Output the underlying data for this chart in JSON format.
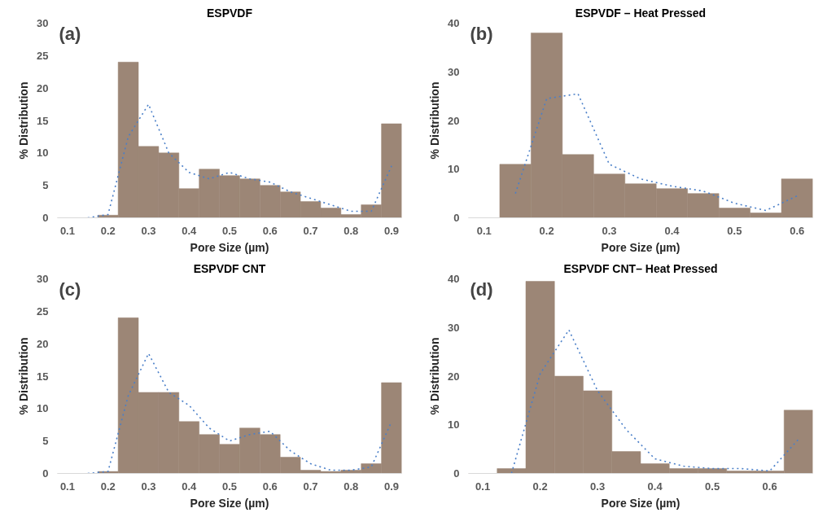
{
  "chart_data": [
    {
      "type": "histogram",
      "title": "ESPVDF",
      "xlabel": "Pore Size (µm)",
      "ylabel": "% Distribution",
      "annotations": [
        "(a)"
      ],
      "bins": [
        0.075,
        0.125,
        0.175,
        0.225,
        0.275,
        0.325,
        0.375,
        0.425,
        0.475,
        0.525,
        0.575,
        0.625,
        0.675,
        0.725,
        0.775,
        0.825,
        0.875,
        0.925
      ],
      "values": [
        0,
        0,
        0.4,
        24,
        11,
        10,
        4.5,
        7.5,
        6.5,
        6,
        5,
        4,
        2.5,
        1.5,
        0.5,
        2,
        14.5
      ],
      "color": "#9c8676",
      "series": [
        {
          "type": "line",
          "x": [
            0.15,
            0.2,
            0.25,
            0.3,
            0.35,
            0.4,
            0.45,
            0.5,
            0.55,
            0.6,
            0.65,
            0.7,
            0.75,
            0.8,
            0.85,
            0.9
          ],
          "values": [
            0,
            0.5,
            12.5,
            17.5,
            10,
            7,
            6,
            7,
            6,
            5.5,
            4,
            3,
            2,
            1,
            1,
            8
          ],
          "color": "#4a7fc8",
          "line_style": "dotted"
        }
      ],
      "xlim": [
        0.075,
        0.925
      ],
      "xticks": [
        0.1,
        0.2,
        0.3,
        0.4,
        0.5,
        0.6,
        0.7,
        0.8,
        0.9
      ],
      "ylim": [
        0,
        30
      ],
      "yticks": [
        0,
        5,
        10,
        15,
        20,
        25,
        30
      ]
    },
    {
      "type": "histogram",
      "title": "ESPVDF – Heat Pressed",
      "xlabel": "Pore Size (µm)",
      "ylabel": "% Distribution",
      "annotations": [
        "(b)"
      ],
      "bins": [
        0.075,
        0.125,
        0.175,
        0.225,
        0.275,
        0.325,
        0.375,
        0.425,
        0.475,
        0.525,
        0.575,
        0.625
      ],
      "values": [
        0,
        11,
        38,
        13,
        9,
        7,
        6,
        5,
        2,
        1,
        8
      ],
      "color": "#9c8676",
      "series": [
        {
          "type": "line",
          "x": [
            0.15,
            0.2,
            0.25,
            0.3,
            0.35,
            0.4,
            0.45,
            0.5,
            0.55,
            0.6
          ],
          "values": [
            5,
            24.5,
            25.5,
            11,
            8,
            6.5,
            5.5,
            3,
            1.5,
            4.5
          ],
          "color": "#4a7fc8",
          "line_style": "dotted"
        }
      ],
      "xlim": [
        0.075,
        0.625
      ],
      "xticks": [
        0.1,
        0.2,
        0.3,
        0.4,
        0.5,
        0.6
      ],
      "ylim": [
        0,
        40
      ],
      "yticks": [
        0,
        10,
        20,
        30,
        40
      ]
    },
    {
      "type": "histogram",
      "title": "ESPVDF CNT",
      "xlabel": "Pore Size (µm)",
      "ylabel": "% Distribution",
      "annotations": [
        "(c)"
      ],
      "bins": [
        0.075,
        0.125,
        0.175,
        0.225,
        0.275,
        0.325,
        0.375,
        0.425,
        0.475,
        0.525,
        0.575,
        0.625,
        0.675,
        0.725,
        0.775,
        0.825,
        0.875,
        0.925
      ],
      "values": [
        0,
        0,
        0.3,
        24,
        12.5,
        12.5,
        8,
        6,
        4.5,
        7,
        6,
        2.5,
        0.5,
        0.3,
        0.5,
        1.5,
        14
      ],
      "color": "#9c8676",
      "series": [
        {
          "type": "line",
          "x": [
            0.15,
            0.2,
            0.25,
            0.3,
            0.35,
            0.4,
            0.45,
            0.5,
            0.55,
            0.6,
            0.65,
            0.7,
            0.75,
            0.8,
            0.85,
            0.9
          ],
          "values": [
            0,
            0.3,
            12,
            18.5,
            12.5,
            10.5,
            7,
            5,
            6,
            6.5,
            3.5,
            1.5,
            0.5,
            0.5,
            1,
            8
          ],
          "color": "#4a7fc8",
          "line_style": "dotted"
        }
      ],
      "xlim": [
        0.075,
        0.925
      ],
      "xticks": [
        0.1,
        0.2,
        0.3,
        0.4,
        0.5,
        0.6,
        0.7,
        0.8,
        0.9
      ],
      "ylim": [
        0,
        30
      ],
      "yticks": [
        0,
        5,
        10,
        15,
        20,
        25,
        30
      ]
    },
    {
      "type": "histogram",
      "title": "ESPVDF CNT– Heat Pressed",
      "xlabel": "Pore Size (µm)",
      "ylabel": "% Distribution",
      "annotations": [
        "(d)"
      ],
      "bins": [
        0.075,
        0.125,
        0.175,
        0.225,
        0.275,
        0.325,
        0.375,
        0.425,
        0.475,
        0.525,
        0.575,
        0.625,
        0.675
      ],
      "values": [
        0,
        1,
        39.5,
        20,
        17,
        4.5,
        2,
        1,
        1,
        0.5,
        0.5,
        13
      ],
      "color": "#9c8676",
      "series": [
        {
          "type": "line",
          "x": [
            0.15,
            0.2,
            0.25,
            0.3,
            0.35,
            0.4,
            0.45,
            0.5,
            0.55,
            0.6,
            0.65
          ],
          "values": [
            0,
            20.5,
            29.5,
            17,
            9,
            3,
            1.5,
            1,
            1,
            0.5,
            7
          ],
          "color": "#4a7fc8",
          "line_style": "dotted"
        }
      ],
      "xlim": [
        0.075,
        0.675
      ],
      "xticks": [
        0.1,
        0.2,
        0.3,
        0.4,
        0.5,
        0.6
      ],
      "ylim": [
        0,
        40
      ],
      "yticks": [
        0,
        10,
        20,
        30,
        40
      ]
    }
  ]
}
